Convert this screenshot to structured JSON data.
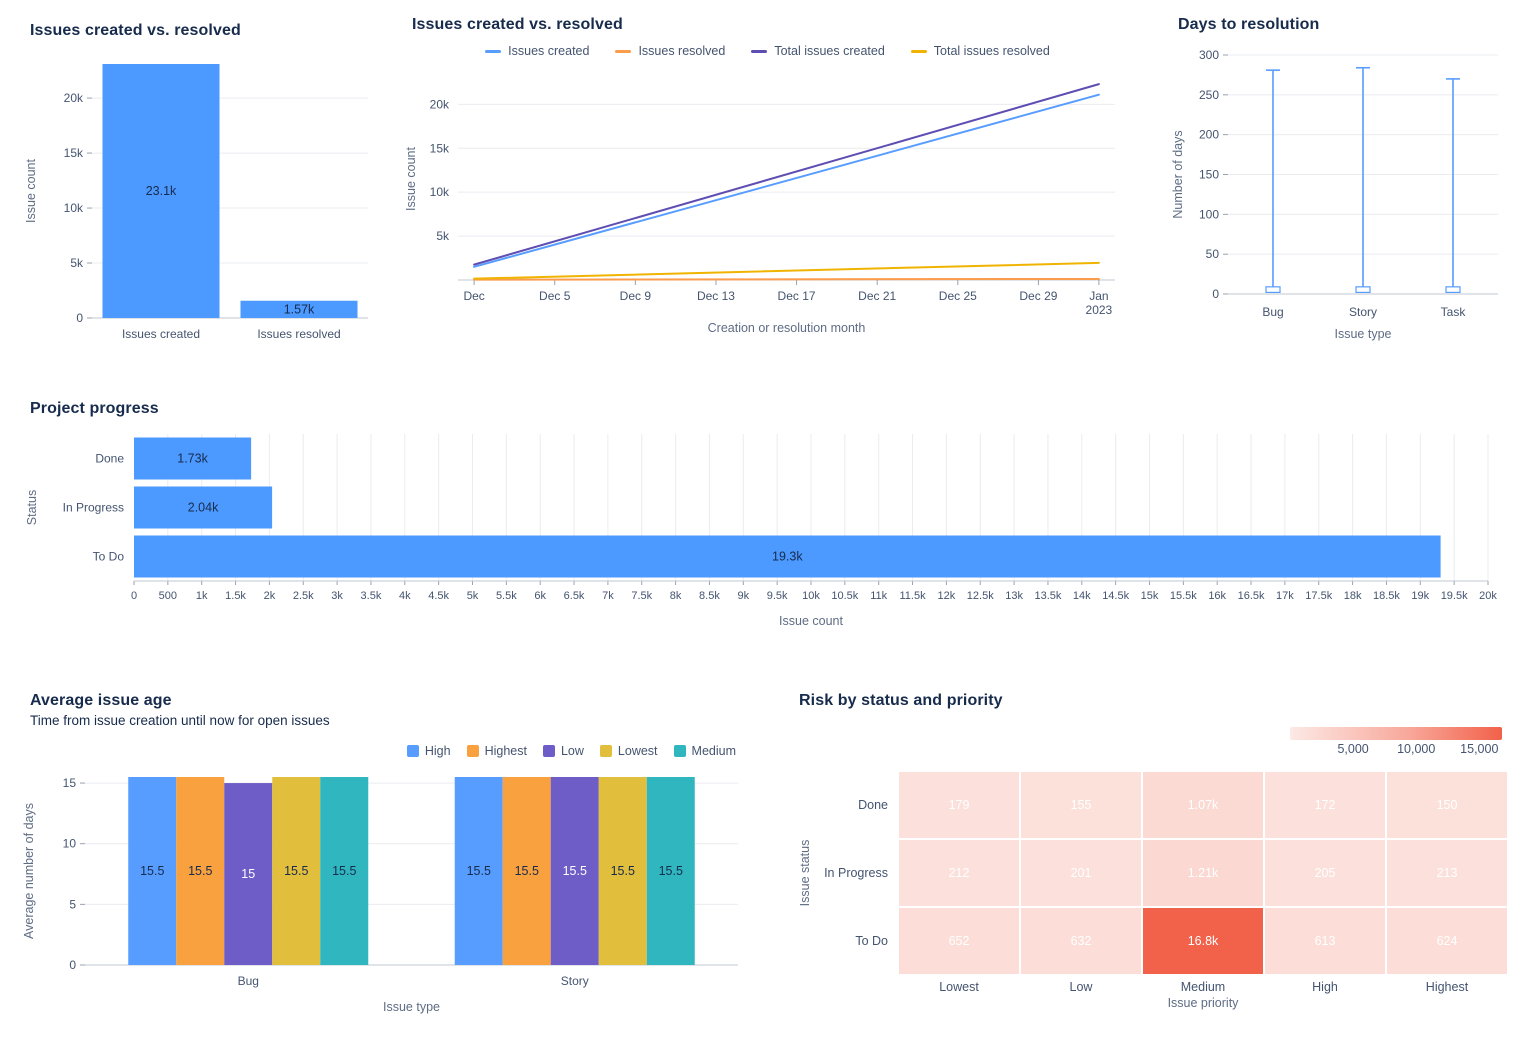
{
  "colors": {
    "bar_blue": "#4C9AFF",
    "text_dark": "#172B4D",
    "text_gray": "#44546F",
    "axis_title_gray": "#5E6C84",
    "gridline": "#EBECF0"
  },
  "chart_data": [
    {
      "id": "issues-created-vs-resolved-bar",
      "type": "bar",
      "title": "Issues created vs. resolved",
      "ylabel": "Issue count",
      "categories": [
        "Issues created",
        "Issues resolved"
      ],
      "values": [
        23100,
        1570
      ],
      "value_labels": [
        "23.1k",
        "1.57k"
      ],
      "ylim": [
        0,
        23100
      ],
      "yticks": [
        0,
        5000,
        10000,
        15000,
        20000
      ],
      "ytick_labels": [
        "0",
        "5k",
        "10k",
        "15k",
        "20k"
      ],
      "bar_color": "#4C9AFF",
      "grid": true
    },
    {
      "id": "issues-created-vs-resolved-line",
      "type": "line",
      "title": "Issues created vs. resolved",
      "xlabel": "Creation or resolution month",
      "ylabel": "Issue count",
      "ylim": [
        0,
        23000
      ],
      "yticks": [
        5000,
        10000,
        15000,
        20000
      ],
      "ytick_labels": [
        "5k",
        "10k",
        "15k",
        "20k"
      ],
      "x_domain_days": [
        0,
        31
      ],
      "legend_position": "top-center",
      "grid": true,
      "xticks": [
        {
          "day": 0,
          "label": "Dec"
        },
        {
          "day": 4,
          "label": "Dec 5"
        },
        {
          "day": 8,
          "label": "Dec 9"
        },
        {
          "day": 12,
          "label": "Dec 13"
        },
        {
          "day": 16,
          "label": "Dec 17"
        },
        {
          "day": 20,
          "label": "Dec 21"
        },
        {
          "day": 24,
          "label": "Dec 25"
        },
        {
          "day": 28,
          "label": "Dec 29"
        },
        {
          "day": 31,
          "label": "Jan\n2023"
        }
      ],
      "series": [
        {
          "name": "Issues created",
          "color": "#579DFF",
          "points": [
            [
              0,
              1500
            ],
            [
              31,
              21100
            ]
          ]
        },
        {
          "name": "Issues resolved",
          "color": "#FB9B4C",
          "points": [
            [
              0,
              40
            ],
            [
              31,
              120
            ]
          ]
        },
        {
          "name": "Total issues created",
          "color": "#5E4DB2",
          "points": [
            [
              0,
              1750
            ],
            [
              31,
              22300
            ]
          ]
        },
        {
          "name": "Total issues resolved",
          "color": "#F0B400",
          "points": [
            [
              0,
              150
            ],
            [
              31,
              1950
            ]
          ]
        }
      ]
    },
    {
      "id": "days-to-resolution",
      "type": "range",
      "title": "Days to resolution",
      "xlabel": "Issue type",
      "ylabel": "Number of days",
      "categories": [
        "Bug",
        "Story",
        "Task"
      ],
      "ranges": [
        [
          2,
          281
        ],
        [
          2,
          284
        ],
        [
          2,
          270
        ]
      ],
      "box_upper": [
        9,
        9,
        9
      ],
      "ylim": [
        0,
        300
      ],
      "yticks": [
        0,
        50,
        100,
        150,
        200,
        250,
        300
      ],
      "color": "#579DFF",
      "grid": true
    },
    {
      "id": "project-progress",
      "type": "hbar",
      "title": "Project progress",
      "xlabel": "Issue count",
      "ylabel": "Status",
      "categories": [
        "Done",
        "In Progress",
        "To Do"
      ],
      "values": [
        1730,
        2040,
        19300
      ],
      "value_labels": [
        "1.73k",
        "2.04k",
        "19.3k"
      ],
      "xlim": [
        0,
        20000
      ],
      "xtick_step": 500,
      "xtick_labels": [
        "0",
        "500",
        "1k",
        "1.5k",
        "2k",
        "2.5k",
        "3k",
        "3.5k",
        "4k",
        "4.5k",
        "5k",
        "5.5k",
        "6k",
        "6.5k",
        "7k",
        "7.5k",
        "8k",
        "8.5k",
        "9k",
        "9.5k",
        "10k",
        "10.5k",
        "11k",
        "11.5k",
        "12k",
        "12.5k",
        "13k",
        "13.5k",
        "14k",
        "14.5k",
        "15k",
        "15.5k",
        "16k",
        "16.5k",
        "17k",
        "17.5k",
        "18k",
        "18.5k",
        "19k",
        "19.5k",
        "20k"
      ],
      "bar_color": "#4C9AFF",
      "grid": true
    },
    {
      "id": "average-issue-age",
      "type": "grouped_bar",
      "title": "Average issue age",
      "subtitle": "Time from issue creation until now for open issues",
      "xlabel": "Issue type",
      "ylabel": "Average number of days",
      "categories": [
        "Bug",
        "Story"
      ],
      "ylim": [
        0,
        15.5
      ],
      "yticks": [
        0,
        5,
        10,
        15
      ],
      "legend_position": "top-right",
      "grid": true,
      "series": [
        {
          "name": "High",
          "color": "#579DFF",
          "label_color": "#172B4D",
          "values": [
            15.5,
            15.5
          ],
          "value_labels": [
            "15.5",
            "15.5"
          ]
        },
        {
          "name": "Highest",
          "color": "#F9A03F",
          "label_color": "#172B4D",
          "values": [
            15.5,
            15.5
          ],
          "value_labels": [
            "15.5",
            "15.5"
          ]
        },
        {
          "name": "Low",
          "color": "#6E5DC6",
          "label_color": "#FFFFFF",
          "values": [
            15,
            15.5
          ],
          "value_labels": [
            "15",
            "15.5"
          ]
        },
        {
          "name": "Lowest",
          "color": "#E2BE3D",
          "label_color": "#172B4D",
          "values": [
            15.5,
            15.5
          ],
          "value_labels": [
            "15.5",
            "15.5"
          ]
        },
        {
          "name": "Medium",
          "color": "#30B6BE",
          "label_color": "#172B4D",
          "values": [
            15.5,
            15.5
          ],
          "value_labels": [
            "15.5",
            "15.5"
          ]
        }
      ]
    },
    {
      "id": "risk-by-status-and-priority",
      "type": "heatmap",
      "title": "Risk by status and priority",
      "xlabel": "Issue priority",
      "ylabel": "Issue status",
      "rows": [
        "Done",
        "In Progress",
        "To Do"
      ],
      "columns": [
        "Lowest",
        "Low",
        "Medium",
        "High",
        "Highest"
      ],
      "values": [
        [
          179,
          155,
          1070,
          172,
          150
        ],
        [
          212,
          201,
          1210,
          205,
          213
        ],
        [
          652,
          632,
          16800,
          613,
          624
        ]
      ],
      "value_labels": [
        [
          "179",
          "155",
          "1.07k",
          "172",
          "150"
        ],
        [
          "212",
          "201",
          "1.21k",
          "205",
          "213"
        ],
        [
          "652",
          "632",
          "16.8k",
          "613",
          "624"
        ]
      ],
      "scale": {
        "min_color": "#FDF0ED",
        "max_color": "#F2614A",
        "max": 16800,
        "tick_values": [
          5000,
          10000,
          15000
        ],
        "tick_labels": [
          "5,000",
          "10,000",
          "15,000"
        ]
      }
    }
  ]
}
